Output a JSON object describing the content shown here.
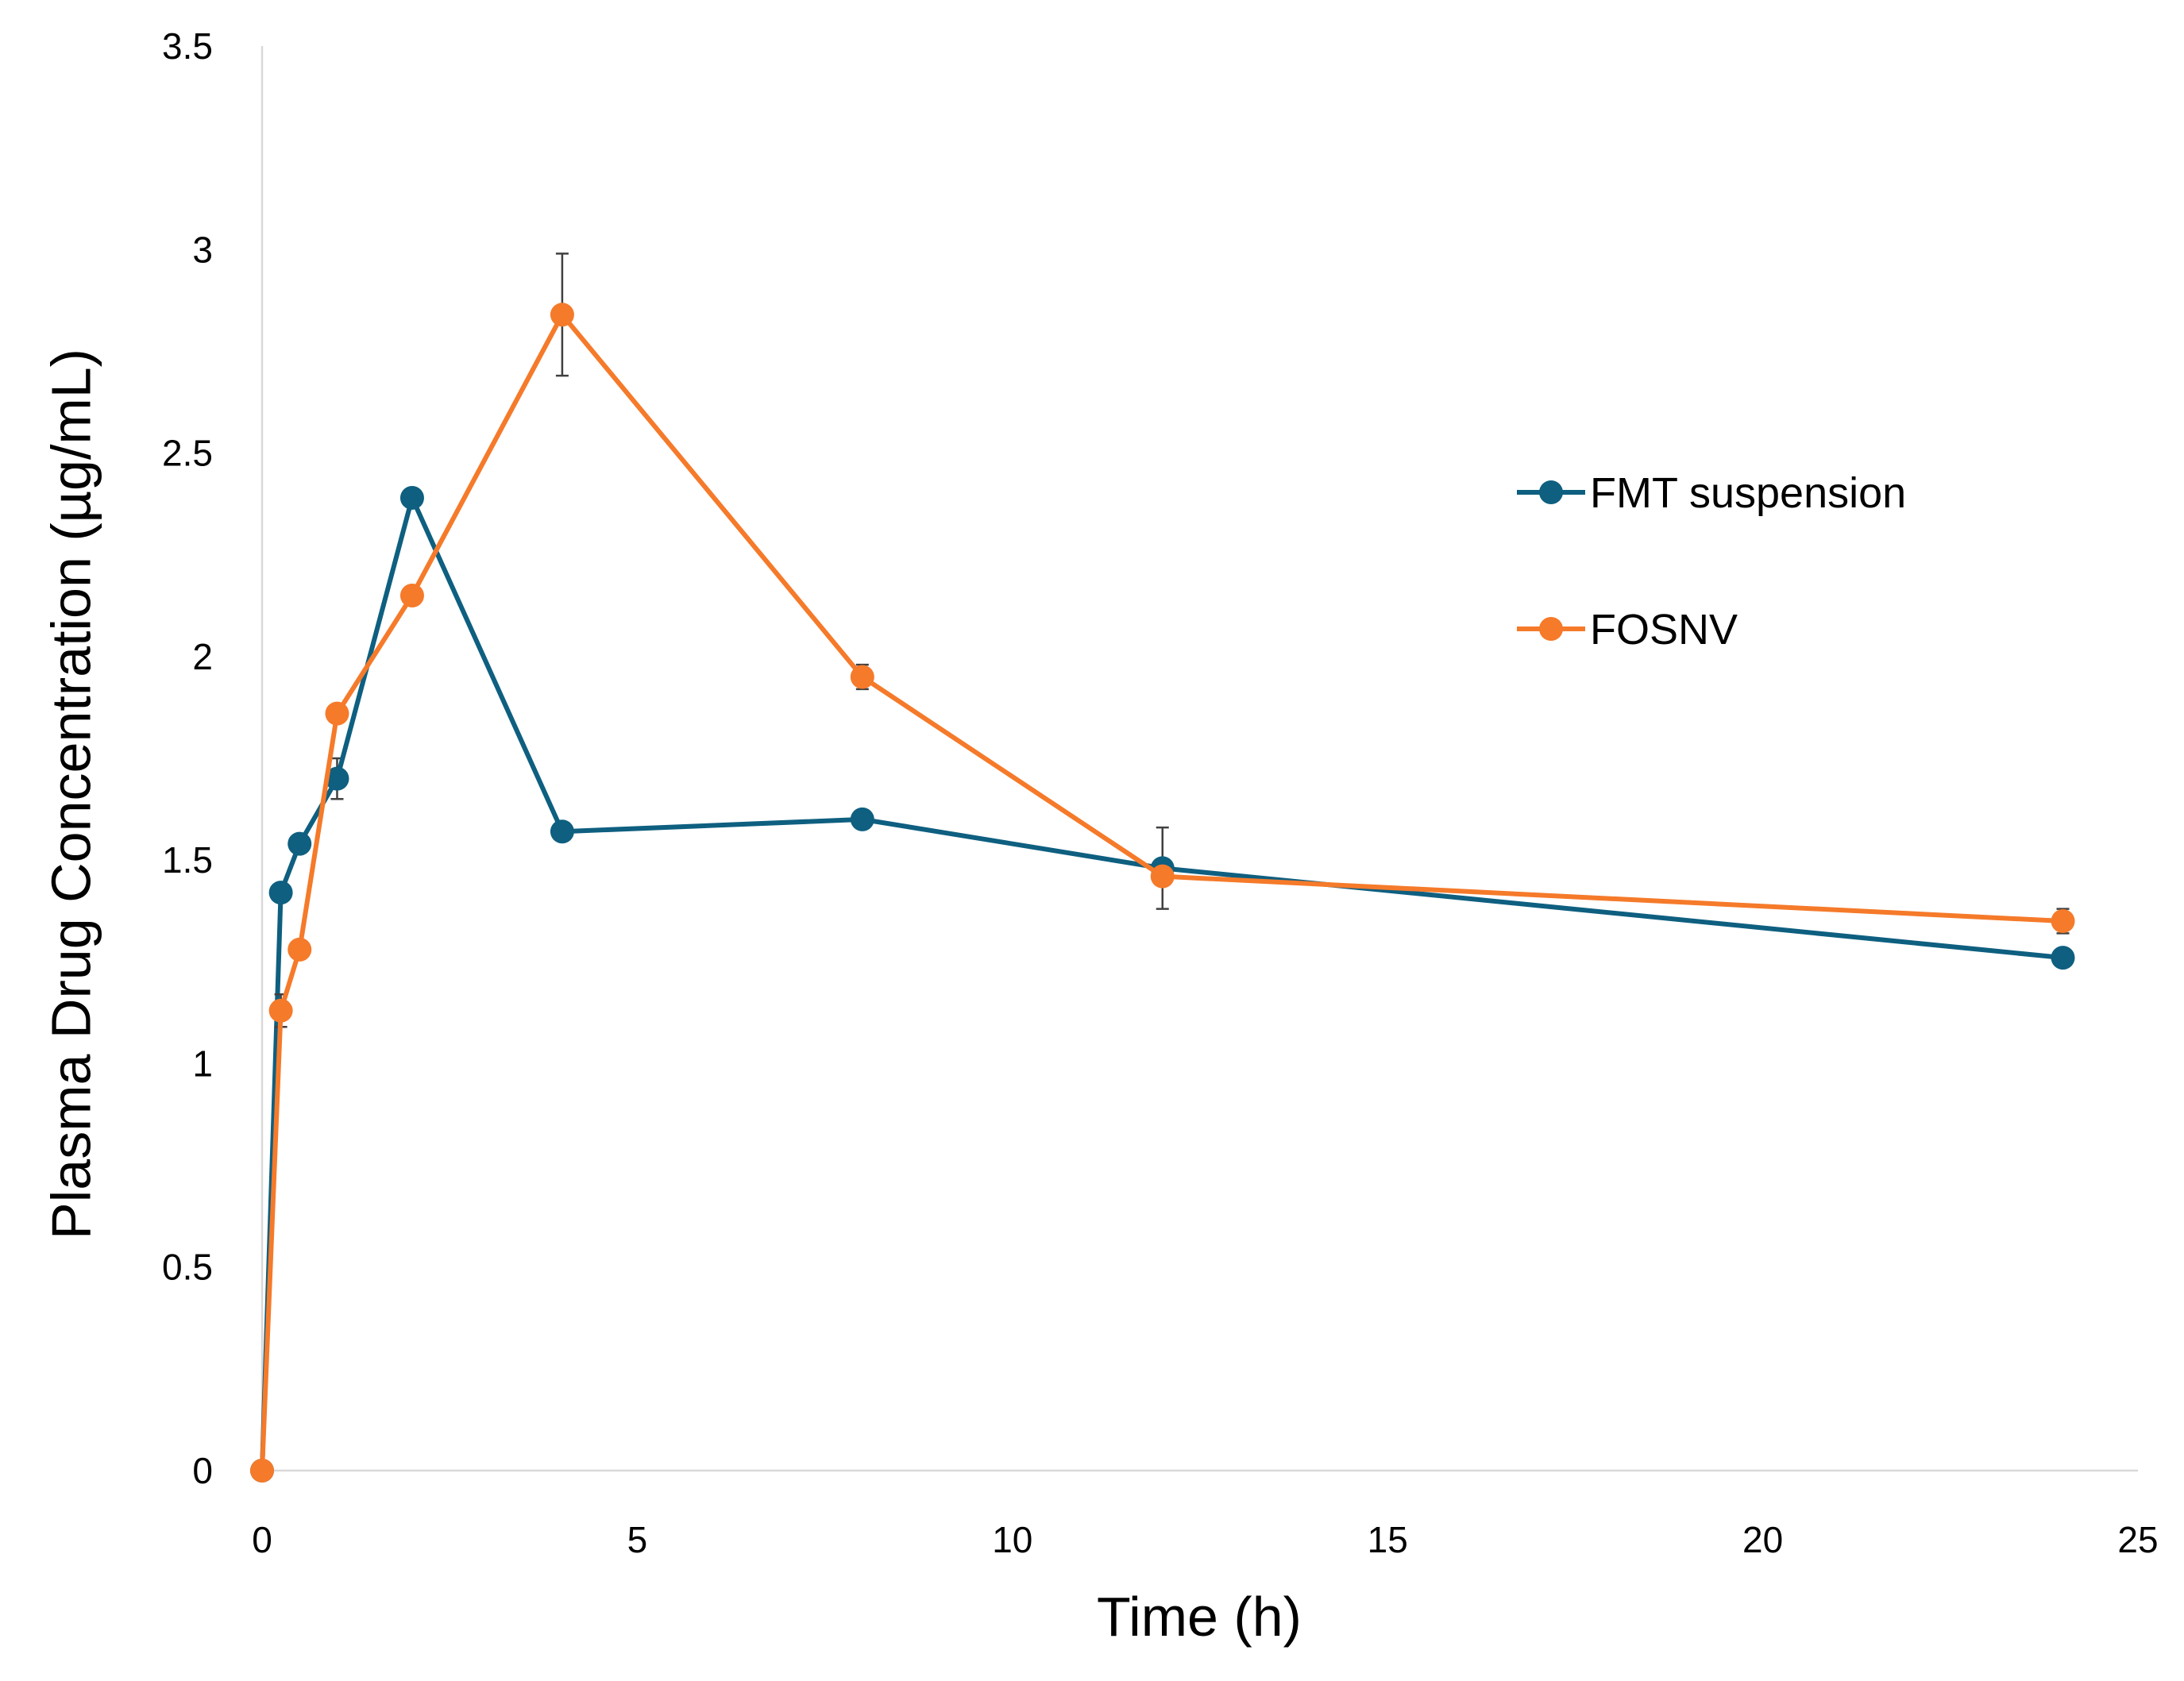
{
  "chart_data": {
    "type": "line",
    "title": "",
    "xlabel": "Time (h)",
    "ylabel": "Plasma Drug Concentration (µg/mL)",
    "xlim": [
      0,
      25
    ],
    "ylim": [
      0,
      3.5
    ],
    "xticks": [
      0,
      5,
      10,
      15,
      20,
      25
    ],
    "xtick_labels": [
      "0",
      "5",
      "10",
      "15",
      "20",
      "25"
    ],
    "yticks": [
      0,
      0.5,
      1,
      1.5,
      2,
      2.5,
      3,
      3.5
    ],
    "ytick_labels": [
      "0",
      "0.5",
      "1",
      "1.5",
      "2",
      "2.5",
      "3",
      "3.5"
    ],
    "grid": false,
    "legend_position": "right",
    "series": [
      {
        "name": "FMT suspension",
        "color": "#0e5f80",
        "x": [
          0,
          0.25,
          0.5,
          1,
          2,
          4,
          8,
          12,
          24
        ],
        "values": [
          0,
          1.42,
          1.54,
          1.7,
          2.39,
          1.57,
          1.6,
          1.48,
          1.26
        ],
        "errors": [
          0,
          0.02,
          0.02,
          0.05,
          0.02,
          0.02,
          0.02,
          0.1,
          0.02
        ]
      },
      {
        "name": "FOSNV",
        "color": "#f57a2a",
        "x": [
          0,
          0.25,
          0.5,
          1,
          2,
          4,
          8,
          12,
          24
        ],
        "values": [
          0,
          1.13,
          1.28,
          1.86,
          2.15,
          2.84,
          1.95,
          1.46,
          1.35
        ],
        "errors": [
          0,
          0.04,
          0.02,
          0.02,
          0.02,
          0.15,
          0.03,
          0.02,
          0.03
        ]
      }
    ]
  }
}
